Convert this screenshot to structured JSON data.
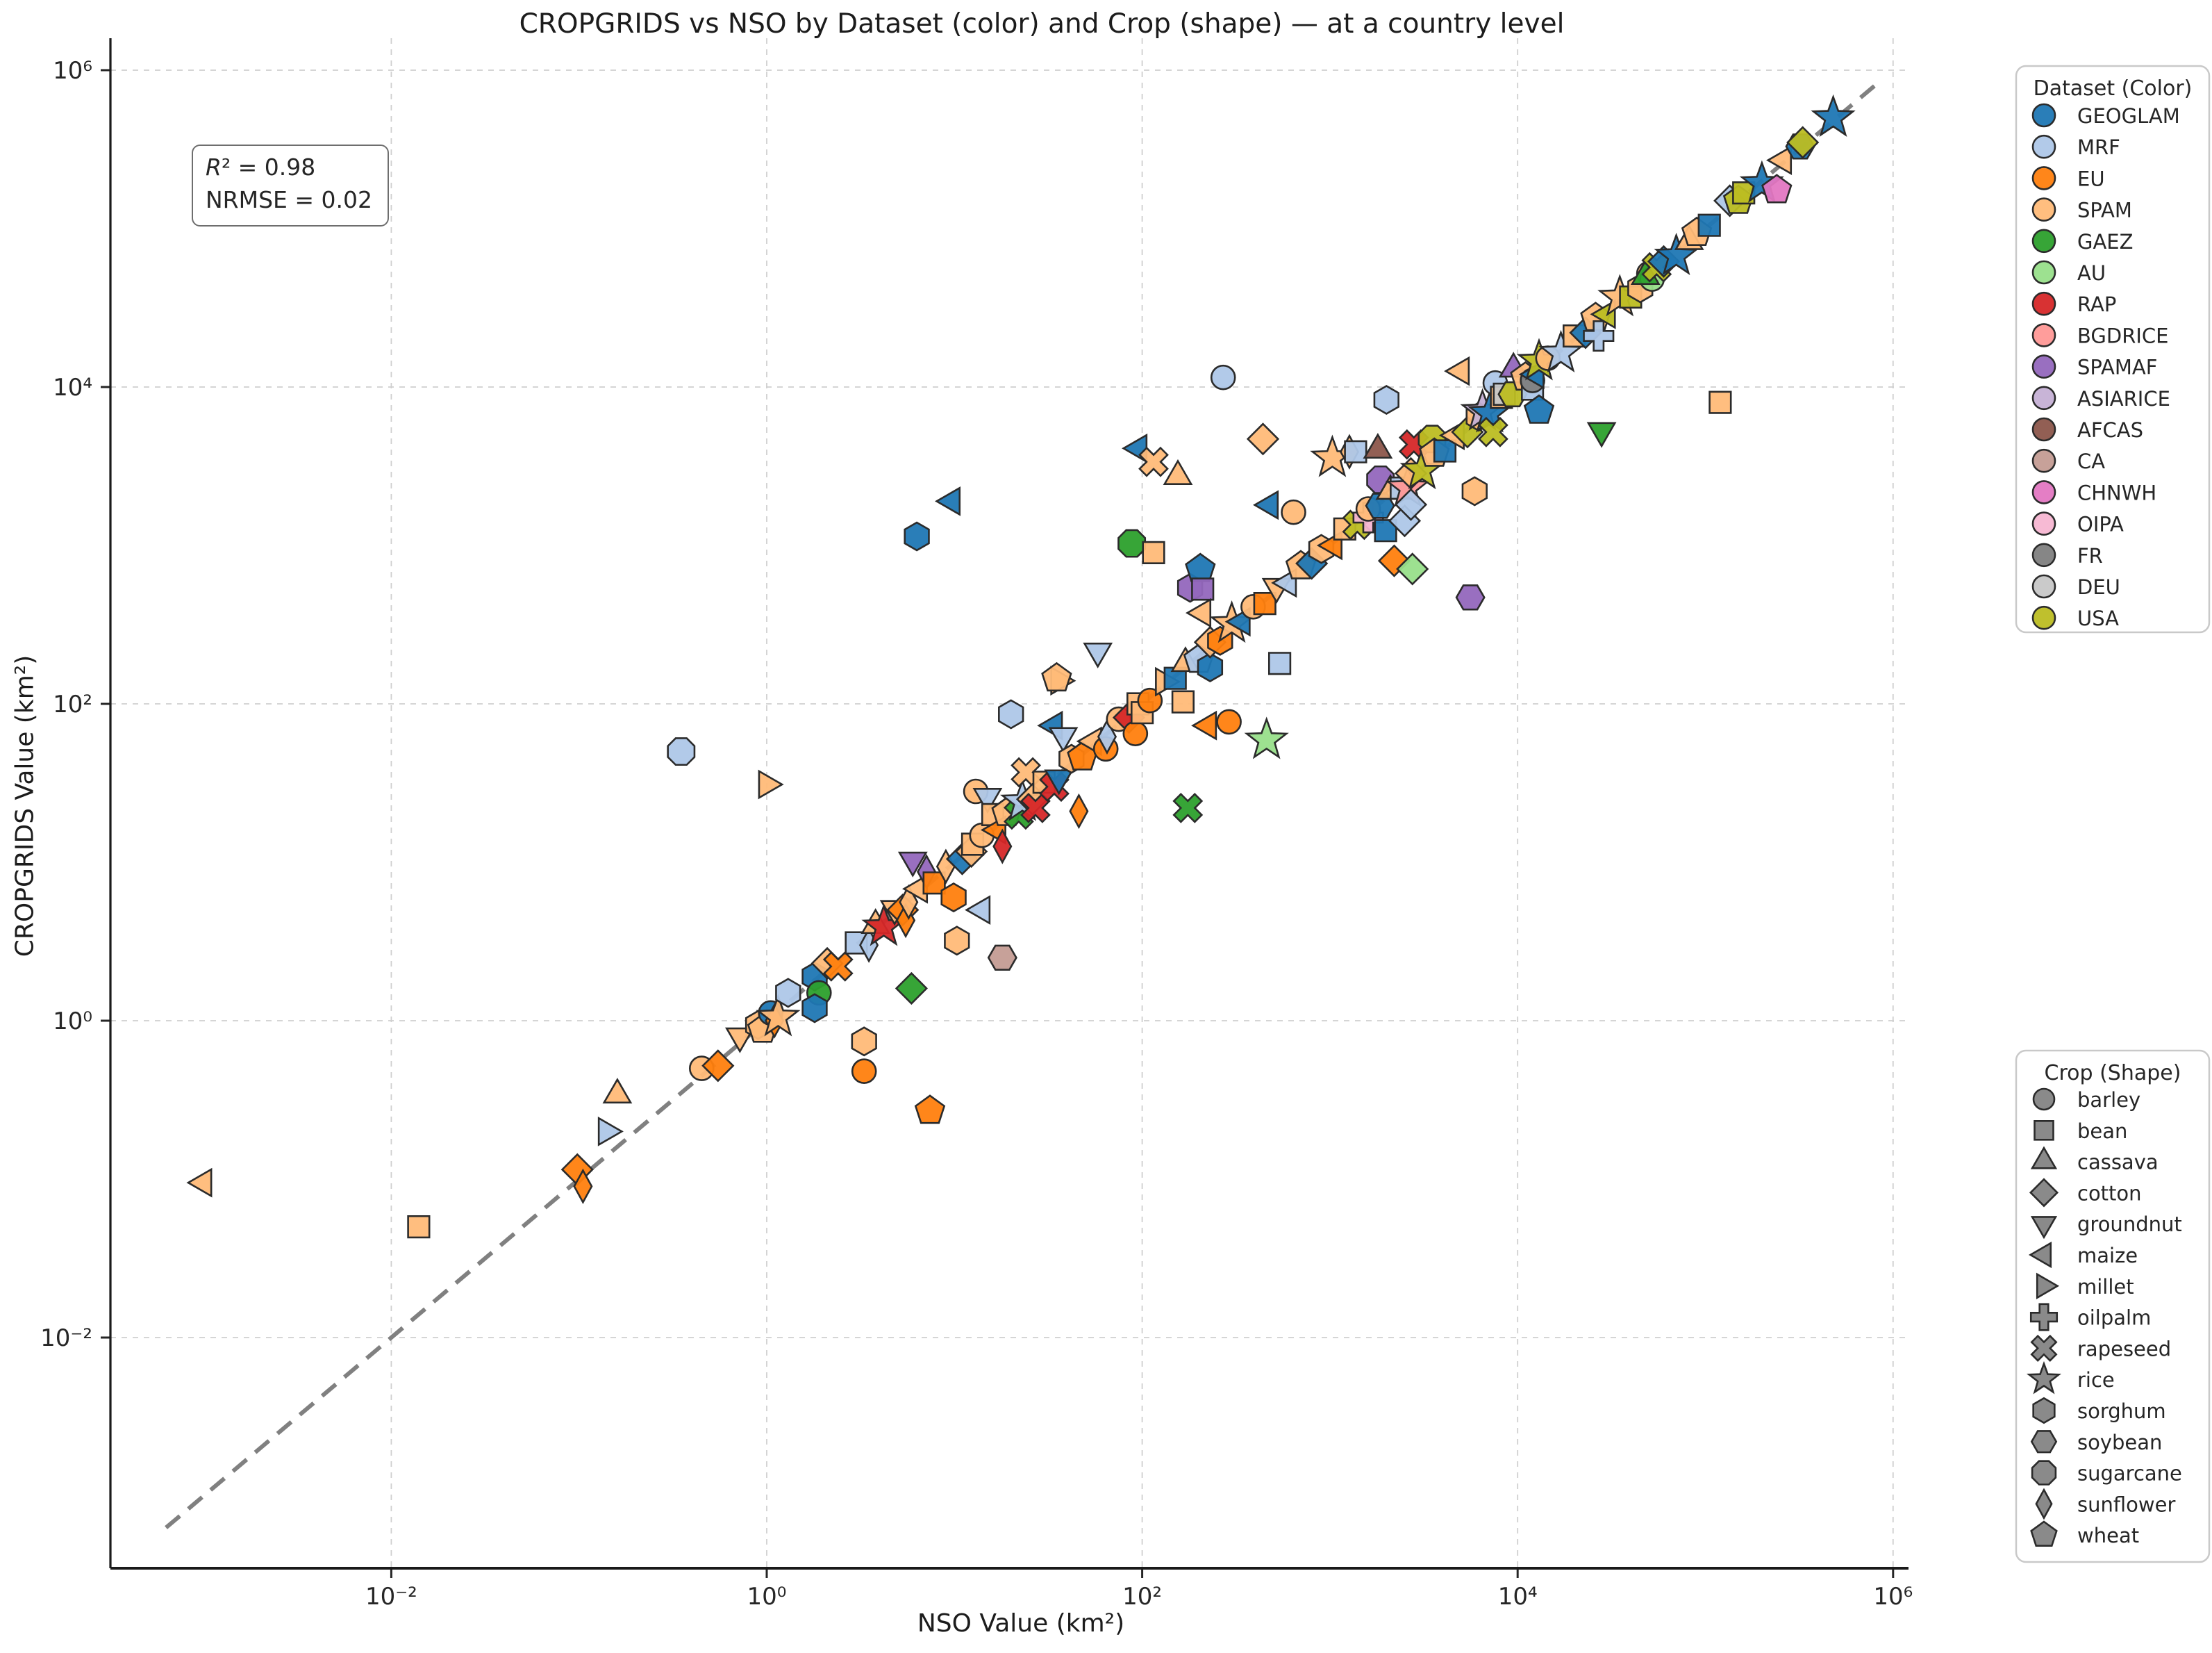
{
  "title": "CROPGRIDS vs NSO by Dataset (color) and Crop (shape) — at a country level",
  "annotation": {
    "r_symbol": "R",
    "r2_rest": "² = 0.98",
    "line2": "NRMSE = 0.02"
  },
  "axes": {
    "x_label": "NSO Value (km²)",
    "y_label": "CROPGRIDS Value (km²)",
    "x_ticks": [
      {
        "value": 0.01,
        "label": "10⁻²"
      },
      {
        "value": 1,
        "label": "10⁰"
      },
      {
        "value": 100,
        "label": "10²"
      },
      {
        "value": 10000,
        "label": "10⁴"
      },
      {
        "value": 1000000,
        "label": "10⁶"
      }
    ],
    "y_ticks": [
      {
        "value": 0.01,
        "label": "10⁻²"
      },
      {
        "value": 1,
        "label": "10⁰"
      },
      {
        "value": 100,
        "label": "10²"
      },
      {
        "value": 10000,
        "label": "10⁴"
      },
      {
        "value": 1000000,
        "label": "10⁶"
      }
    ]
  },
  "legend_datasets": {
    "title": "Dataset (Color)",
    "entries": [
      {
        "label": "GEOGLAM",
        "color": "#1f77b4"
      },
      {
        "label": "MRF",
        "color": "#aec7e8"
      },
      {
        "label": "EU",
        "color": "#ff7f0e"
      },
      {
        "label": "SPAM",
        "color": "#ffbb78"
      },
      {
        "label": "GAEZ",
        "color": "#2ca02c"
      },
      {
        "label": "AU",
        "color": "#98df8a"
      },
      {
        "label": "RAP",
        "color": "#d62728"
      },
      {
        "label": "BGDRICE",
        "color": "#ff9896"
      },
      {
        "label": "SPAMAF",
        "color": "#9467bd"
      },
      {
        "label": "ASIARICE",
        "color": "#c5b0d5"
      },
      {
        "label": "AFCAS",
        "color": "#8c564b"
      },
      {
        "label": "CA",
        "color": "#c49c94"
      },
      {
        "label": "CHNWH",
        "color": "#e377c2"
      },
      {
        "label": "OIPA",
        "color": "#f7b6d2"
      },
      {
        "label": "FR",
        "color": "#7f7f7f"
      },
      {
        "label": "DEU",
        "color": "#c7c7c7"
      },
      {
        "label": "USA",
        "color": "#bcbd22"
      }
    ]
  },
  "legend_crops": {
    "title": "Crop (Shape)",
    "entries": [
      {
        "label": "barley",
        "shape": "circle"
      },
      {
        "label": "bean",
        "shape": "square"
      },
      {
        "label": "cassava",
        "shape": "triangle-up"
      },
      {
        "label": "cotton",
        "shape": "diamond"
      },
      {
        "label": "groundnut",
        "shape": "triangle-down"
      },
      {
        "label": "maize",
        "shape": "triangle-left"
      },
      {
        "label": "millet",
        "shape": "triangle-right"
      },
      {
        "label": "oilpalm",
        "shape": "plus"
      },
      {
        "label": "rapeseed",
        "shape": "x"
      },
      {
        "label": "rice",
        "shape": "star"
      },
      {
        "label": "sorghum",
        "shape": "hexagon-pointy"
      },
      {
        "label": "soybean",
        "shape": "hexagon-flat"
      },
      {
        "label": "sugarcane",
        "shape": "octagon"
      },
      {
        "label": "sunflower",
        "shape": "thin-diamond"
      },
      {
        "label": "wheat",
        "shape": "pentagon"
      }
    ]
  },
  "chart_data": {
    "type": "scatter",
    "x_scale": "log",
    "y_scale": "log",
    "xlim": [
      0.0002,
      1500000
    ],
    "ylim": [
      0.0003,
      2000000
    ],
    "grid": true,
    "identity_line": true,
    "marker_edge_color": "#2b2b2b",
    "identity_color": "#808080",
    "grid_color": "#cfcfcf",
    "columns": [
      "x",
      "y",
      "dataset",
      "crop"
    ],
    "points": [
      [
        0.001,
        0.095,
        "SPAM",
        "maize"
      ],
      [
        0.014,
        0.05,
        "SPAM",
        "bean"
      ],
      [
        0.098,
        0.115,
        "EU",
        "cotton"
      ],
      [
        0.105,
        0.09,
        "EU",
        "sunflower"
      ],
      [
        0.14,
        0.2,
        "MRF",
        "millet"
      ],
      [
        0.16,
        0.34,
        "SPAM",
        "cassava"
      ],
      [
        0.35,
        50,
        "MRF",
        "sugarcane"
      ],
      [
        0.45,
        0.5,
        "SPAM",
        "barley"
      ],
      [
        0.55,
        0.52,
        "EU",
        "cotton"
      ],
      [
        0.72,
        0.8,
        "SPAM",
        "groundnut"
      ],
      [
        0.9,
        0.94,
        "SPAM",
        "sorghum"
      ],
      [
        0.95,
        0.88,
        "SPAM",
        "wheat"
      ],
      [
        1.0,
        31,
        "SPAM",
        "millet"
      ],
      [
        1.05,
        1.12,
        "GEOGLAM",
        "barley"
      ],
      [
        1.1,
        1.0,
        "EU",
        "sunflower"
      ],
      [
        1.15,
        1.05,
        "SPAM",
        "rice"
      ],
      [
        1.3,
        1.5,
        "MRF",
        "sorghum"
      ],
      [
        1.8,
        1.9,
        "GEOGLAM",
        "sorghum"
      ],
      [
        1.9,
        1.5,
        "GAEZ",
        "barley"
      ],
      [
        1.8,
        1.2,
        "GEOGLAM",
        "sorghum"
      ],
      [
        2.1,
        2.3,
        "SPAM",
        "cotton"
      ],
      [
        2.4,
        2.2,
        "EU",
        "rapeseed"
      ],
      [
        3.0,
        3.1,
        "MRF",
        "bean"
      ],
      [
        3.5,
        3.0,
        "MRF",
        "sunflower"
      ],
      [
        3.3,
        0.74,
        "SPAM",
        "sorghum"
      ],
      [
        3.3,
        0.48,
        "EU",
        "barley"
      ],
      [
        3.8,
        4.0,
        "SPAM",
        "cassava"
      ],
      [
        4.2,
        3.9,
        "RAP",
        "rice"
      ],
      [
        4.8,
        5.1,
        "SPAM",
        "groundnut"
      ],
      [
        5.3,
        5.0,
        "EU",
        "cotton"
      ],
      [
        5.5,
        4.3,
        "EU",
        "sunflower"
      ],
      [
        5.7,
        5.6,
        "SPAM",
        "sunflower"
      ],
      [
        5.9,
        1.6,
        "GAEZ",
        "cotton"
      ],
      [
        6.0,
        10.3,
        "SPAMAF",
        "groundnut"
      ],
      [
        6.3,
        1140,
        "GEOGLAM",
        "sorghum"
      ],
      [
        6.5,
        6.8,
        "SPAM",
        "maize"
      ],
      [
        7.1,
        8.7,
        "SPAMAF",
        "sunflower"
      ],
      [
        7.4,
        0.27,
        "EU",
        "wheat"
      ],
      [
        7.8,
        7.4,
        "EU",
        "bean"
      ],
      [
        9.7,
        1900,
        "GEOGLAM",
        "maize"
      ],
      [
        9.9,
        6.0,
        "EU",
        "sorghum"
      ],
      [
        9.0,
        9.4,
        "SPAM",
        "sunflower"
      ],
      [
        10.3,
        3.2,
        "SPAM",
        "sorghum"
      ],
      [
        11,
        10.5,
        "GEOGLAM",
        "cotton"
      ],
      [
        12.3,
        11.7,
        "SPAM",
        "cotton"
      ],
      [
        13,
        28,
        "SPAM",
        "barley"
      ],
      [
        12.5,
        13,
        "SPAM",
        "bean"
      ],
      [
        14,
        14.8,
        "SPAM",
        "barley"
      ],
      [
        14,
        5.0,
        "MRF",
        "maize"
      ],
      [
        15,
        26,
        "MRF",
        "groundnut"
      ],
      [
        16,
        20,
        "SPAM",
        "bean"
      ],
      [
        17,
        16,
        "EU",
        "maize"
      ],
      [
        18,
        12.6,
        "RAP",
        "sunflower"
      ],
      [
        18,
        2.5,
        "CA",
        "soybean"
      ],
      [
        19,
        20.5,
        "SPAM",
        "wheat"
      ],
      [
        20,
        86,
        "MRF",
        "sorghum"
      ],
      [
        22,
        20,
        "GAEZ",
        "rapeseed"
      ],
      [
        23,
        24,
        "MRF",
        "rice"
      ],
      [
        24,
        37,
        "SPAM",
        "rapeseed"
      ],
      [
        26,
        25,
        "SPAM",
        "cotton"
      ],
      [
        27,
        22,
        "RAP",
        "rapeseed"
      ],
      [
        30,
        32,
        "SPAM",
        "bean"
      ],
      [
        34,
        30,
        "RAP",
        "rapeseed"
      ],
      [
        34,
        73,
        "GEOGLAM",
        "maize"
      ],
      [
        36,
        140,
        "SPAM",
        "millet"
      ],
      [
        36,
        34,
        "GEOGLAM",
        "groundnut"
      ],
      [
        35,
        145,
        "SPAM",
        "wheat"
      ],
      [
        38,
        63,
        "MRF",
        "groundnut"
      ],
      [
        42,
        45,
        "SPAM",
        "sorghum"
      ],
      [
        46,
        21,
        "EU",
        "sunflower"
      ],
      [
        48,
        46,
        "EU",
        "wheat"
      ],
      [
        55,
        58,
        "SPAM",
        "maize"
      ],
      [
        58,
        215,
        "MRF",
        "groundnut"
      ],
      [
        64,
        52,
        "EU",
        "barley"
      ],
      [
        65,
        62,
        "MRF",
        "sunflower"
      ],
      [
        75,
        80,
        "SPAM",
        "barley"
      ],
      [
        85,
        82,
        "RAP",
        "cotton"
      ],
      [
        88,
        1030,
        "GAEZ",
        "sugarcane"
      ],
      [
        92,
        65,
        "EU",
        "barley"
      ],
      [
        95,
        100,
        "SPAM",
        "bean"
      ],
      [
        96,
        4100,
        "GEOGLAM",
        "maize"
      ],
      [
        100,
        88,
        "SPAM",
        "bean"
      ],
      [
        110,
        105,
        "EU",
        "barley"
      ],
      [
        115,
        3370,
        "SPAM",
        "rapeseed"
      ],
      [
        115,
        900,
        "SPAM",
        "bean"
      ],
      [
        130,
        138,
        "SPAM",
        "millet"
      ],
      [
        150,
        145,
        "GEOGLAM",
        "bean"
      ],
      [
        155,
        2730,
        "SPAM",
        "cassava"
      ],
      [
        165,
        103,
        "SPAM",
        "bean"
      ],
      [
        170,
        180,
        "SPAM",
        "cassava"
      ],
      [
        175,
        22,
        "GAEZ",
        "rapeseed"
      ],
      [
        180,
        540,
        "SPAMAF",
        "sorghum"
      ],
      [
        200,
        190,
        "MRF",
        "wheat"
      ],
      [
        204,
        710,
        "GEOGLAM",
        "wheat"
      ],
      [
        210,
        530,
        "SPAMAF",
        "bean"
      ],
      [
        210,
        375,
        "SPAM",
        "maize"
      ],
      [
        225,
        73,
        "EU",
        "maize"
      ],
      [
        230,
        170,
        "GEOGLAM",
        "sorghum"
      ],
      [
        230,
        245,
        "SPAM",
        "cotton"
      ],
      [
        260,
        250,
        "EU",
        "sorghum"
      ],
      [
        270,
        11500,
        "MRF",
        "barley"
      ],
      [
        290,
        77,
        "EU",
        "barley"
      ],
      [
        300,
        320,
        "SPAM",
        "rice"
      ],
      [
        340,
        330,
        "GEOGLAM",
        "maize"
      ],
      [
        390,
        410,
        "SPAM",
        "barley"
      ],
      [
        440,
        4700,
        "SPAM",
        "cotton"
      ],
      [
        450,
        430,
        "EU",
        "bean"
      ],
      [
        460,
        59,
        "AU",
        "rice"
      ],
      [
        480,
        1800,
        "GEOGLAM",
        "maize"
      ],
      [
        520,
        550,
        "SPAM",
        "groundnut"
      ],
      [
        540,
        180,
        "MRF",
        "bean"
      ],
      [
        600,
        580,
        "MRF",
        "maize"
      ],
      [
        640,
        1620,
        "SPAM",
        "barley"
      ],
      [
        700,
        740,
        "SPAM",
        "wheat"
      ],
      [
        800,
        770,
        "GEOGLAM",
        "cotton"
      ],
      [
        900,
        950,
        "SPAM",
        "sorghum"
      ],
      [
        1030,
        3560,
        "SPAM",
        "rice"
      ],
      [
        1050,
        1000,
        "EU",
        "maize"
      ],
      [
        1200,
        1270,
        "SPAM",
        "bean"
      ],
      [
        1270,
        3900,
        "SPAM",
        "sunflower"
      ],
      [
        1370,
        3900,
        "MRF",
        "bean"
      ],
      [
        1400,
        1350,
        "USA",
        "rapeseed"
      ],
      [
        1600,
        1500,
        "OIPA",
        "oilpalm"
      ],
      [
        1600,
        1700,
        "SPAM",
        "barley"
      ],
      [
        1800,
        4000,
        "AFCAS",
        "cassava"
      ],
      [
        1850,
        1780,
        "GEOGLAM",
        "soybean"
      ],
      [
        1860,
        2600,
        "SPAMAF",
        "sugarcane"
      ],
      [
        1980,
        1240,
        "GEOGLAM",
        "bean"
      ],
      [
        2000,
        8300,
        "MRF",
        "sorghum"
      ],
      [
        2100,
        2200,
        "SPAM",
        "cassava"
      ],
      [
        2200,
        800,
        "EU",
        "cotton"
      ],
      [
        2400,
        2300,
        "MRF",
        "bean"
      ],
      [
        2600,
        2300,
        "BGDRICE",
        "rice"
      ],
      [
        2500,
        1430,
        "MRF",
        "cotton"
      ],
      [
        2700,
        1810,
        "MRF",
        "cotton"
      ],
      [
        2700,
        2850,
        "SPAM",
        "cotton"
      ],
      [
        2800,
        4340,
        "RAP",
        "rapeseed"
      ],
      [
        2750,
        710,
        "AU",
        "cotton"
      ],
      [
        3100,
        2980,
        "USA",
        "rice"
      ],
      [
        3500,
        4700,
        "USA",
        "sugarcane"
      ],
      [
        3600,
        3800,
        "SPAM",
        "wheat"
      ],
      [
        4100,
        3950,
        "GEOGLAM",
        "bean"
      ],
      [
        4700,
        4950,
        "SPAM",
        "maize"
      ],
      [
        5000,
        12600,
        "SPAM",
        "maize"
      ],
      [
        5400,
        5200,
        "USA",
        "cotton"
      ],
      [
        5600,
        470,
        "SPAMAF",
        "soybean"
      ],
      [
        5900,
        2200,
        "SPAM",
        "sorghum"
      ],
      [
        6200,
        6500,
        "SPAM",
        "sorghum"
      ],
      [
        6500,
        7000,
        "ASIARICE",
        "rice"
      ],
      [
        7100,
        6800,
        "GEOGLAM",
        "rice"
      ],
      [
        7400,
        5200,
        "USA",
        "rapeseed"
      ],
      [
        7600,
        10600,
        "MRF",
        "barley"
      ],
      [
        8200,
        8600,
        "SPAM",
        "bean"
      ],
      [
        8500,
        9000,
        "DEU",
        "bean"
      ],
      [
        9400,
        9000,
        "USA",
        "soybean"
      ],
      [
        9500,
        13000,
        "SPAMAF",
        "cassava"
      ],
      [
        11000,
        11500,
        "SPAM",
        "wheat"
      ],
      [
        12000,
        9700,
        "MRF",
        "bean"
      ],
      [
        12000,
        11000,
        "FR",
        "barley"
      ],
      [
        12500,
        12000,
        "GEOGLAM",
        "maize"
      ],
      [
        13000,
        7100,
        "GEOGLAM",
        "wheat"
      ],
      [
        13000,
        14500,
        "USA",
        "rice"
      ],
      [
        14500,
        15200,
        "SPAM",
        "barley"
      ],
      [
        17000,
        16300,
        "MRF",
        "rice"
      ],
      [
        20000,
        21000,
        "SPAM",
        "bean"
      ],
      [
        23000,
        22000,
        "GEOGLAM",
        "cotton"
      ],
      [
        26000,
        27300,
        "SPAM",
        "wheat"
      ],
      [
        27000,
        21000,
        "MRF",
        "oilpalm"
      ],
      [
        28000,
        5300,
        "GAEZ",
        "groundnut"
      ],
      [
        30000,
        28800,
        "USA",
        "maize"
      ],
      [
        35000,
        36800,
        "SPAM",
        "rice"
      ],
      [
        40000,
        37000,
        "USA",
        "bean"
      ],
      [
        45000,
        42000,
        "SPAM",
        "sorghum"
      ],
      [
        50000,
        52000,
        "SPAM",
        "barley"
      ],
      [
        52000,
        48000,
        "AU",
        "barley"
      ],
      [
        48000,
        50000,
        "GAEZ",
        "cassava"
      ],
      [
        55000,
        57000,
        "USA",
        "rapeseed"
      ],
      [
        60000,
        62000,
        "GEOGLAM",
        "cotton"
      ],
      [
        70000,
        67000,
        "GEOGLAM",
        "rice"
      ],
      [
        82000,
        83000,
        "SPAM",
        "cassava"
      ],
      [
        90000,
        94000,
        "SPAM",
        "wheat"
      ],
      [
        105000,
        105000,
        "GEOGLAM",
        "bean"
      ],
      [
        120000,
        8000,
        "SPAM",
        "bean"
      ],
      [
        135000,
        150000,
        "MRF",
        "cotton"
      ],
      [
        150000,
        150000,
        "USA",
        "wheat"
      ],
      [
        160000,
        168000,
        "USA",
        "bean"
      ],
      [
        200000,
        192000,
        "GEOGLAM",
        "rice"
      ],
      [
        240000,
        175000,
        "CHNWH",
        "wheat"
      ],
      [
        260000,
        270000,
        "SPAM",
        "maize"
      ],
      [
        320000,
        330000,
        "GEOGLAM",
        "soybean"
      ],
      [
        330000,
        350000,
        "USA",
        "cotton"
      ],
      [
        480000,
        500000,
        "GEOGLAM",
        "rice"
      ]
    ]
  }
}
